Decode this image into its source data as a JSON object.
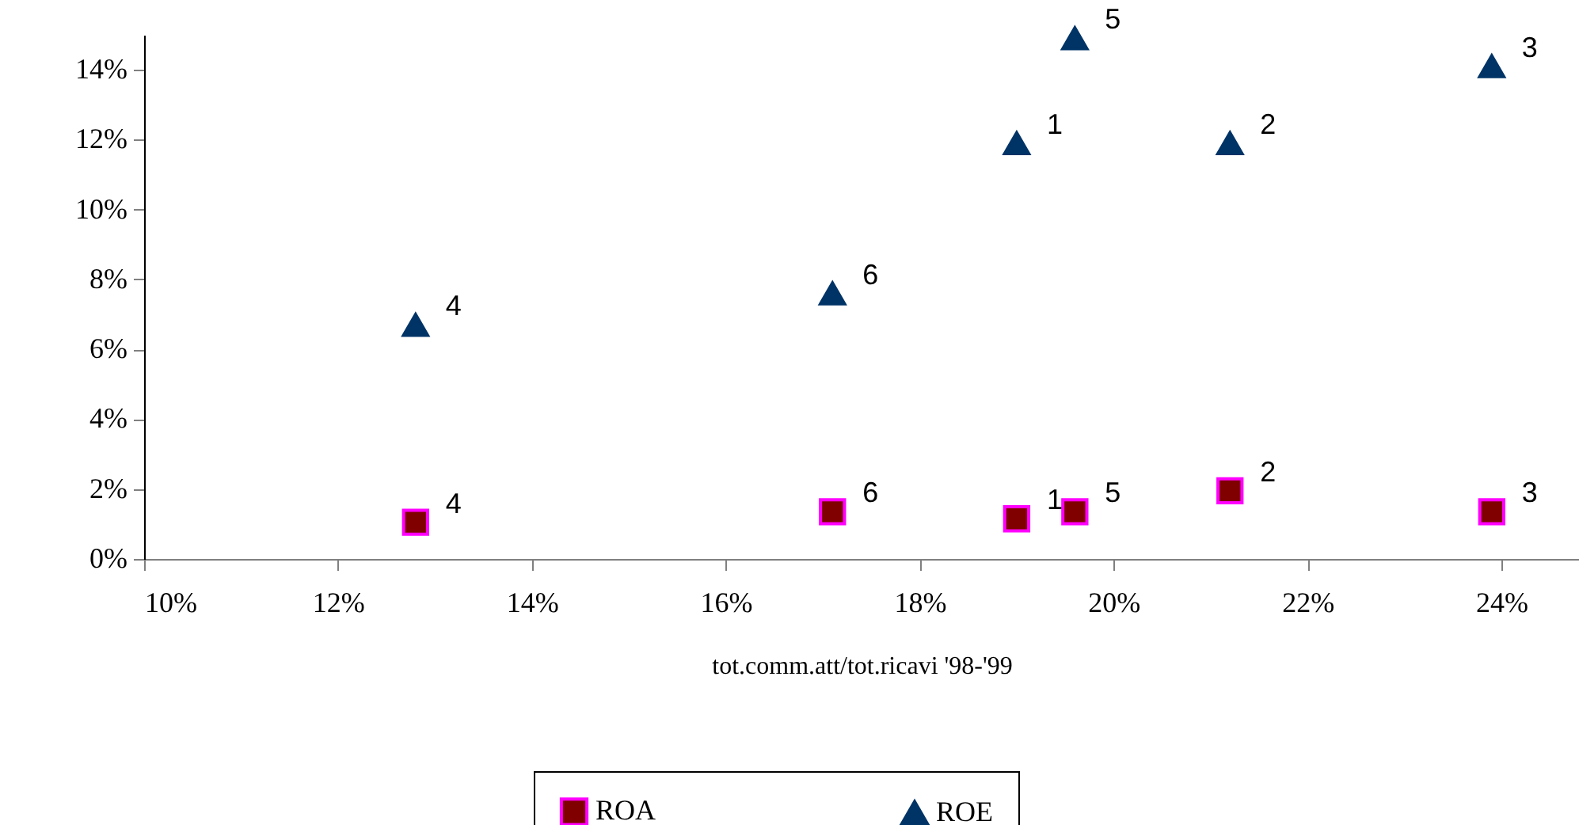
{
  "chart_data": {
    "type": "scatter",
    "xlabel": "tot.comm.att/tot.ricavi '98-'99",
    "xlim": [
      10,
      24.8
    ],
    "xticks": [
      {
        "value": 10,
        "label": "10%"
      },
      {
        "value": 12,
        "label": "12%"
      },
      {
        "value": 14,
        "label": "14%"
      },
      {
        "value": 16,
        "label": "16%"
      },
      {
        "value": 18,
        "label": "18%"
      },
      {
        "value": 20,
        "label": "20%"
      },
      {
        "value": 22,
        "label": "22%"
      },
      {
        "value": 24,
        "label": "24%"
      }
    ],
    "ylim": [
      0,
      15
    ],
    "yticks": [
      {
        "value": 0,
        "label": "0%"
      },
      {
        "value": 2,
        "label": "2%"
      },
      {
        "value": 4,
        "label": "4%"
      },
      {
        "value": 6,
        "label": "6%"
      },
      {
        "value": 8,
        "label": "8%"
      },
      {
        "value": 10,
        "label": "10%"
      },
      {
        "value": 12,
        "label": "12%"
      },
      {
        "value": 14,
        "label": "14%"
      }
    ],
    "grid": false,
    "legend": "bottom",
    "series": [
      {
        "name": "ROA",
        "color": "#800000",
        "marker": "square",
        "x": [
          19.0,
          21.2,
          23.9,
          12.8,
          19.6,
          17.1
        ],
        "values": [
          1.15,
          1.95,
          1.35,
          1.05,
          1.35,
          1.35
        ]
      },
      {
        "name": "ROE",
        "color": "#003366",
        "marker": "triangle",
        "x": [
          19.0,
          21.2,
          23.9,
          12.8,
          19.6,
          17.1
        ],
        "values": [
          11.9,
          11.9,
          14.1,
          6.7,
          14.9,
          7.6
        ]
      }
    ],
    "annotations": [
      {
        "text": "1",
        "x": 19.0,
        "y": 11.9
      },
      {
        "text": "2",
        "x": 21.2,
        "y": 11.9
      },
      {
        "text": "3",
        "x": 23.9,
        "y": 14.1
      },
      {
        "text": "4",
        "x": 12.8,
        "y": 6.7
      },
      {
        "text": "5",
        "x": 19.6,
        "y": 14.9
      },
      {
        "text": "6",
        "x": 17.1,
        "y": 7.6
      },
      {
        "text": "1",
        "x": 19.0,
        "y": 1.15
      },
      {
        "text": "2",
        "x": 21.2,
        "y": 1.95
      },
      {
        "text": "3",
        "x": 23.9,
        "y": 1.35
      },
      {
        "text": "4",
        "x": 12.8,
        "y": 1.05
      },
      {
        "text": "5",
        "x": 19.6,
        "y": 1.35
      },
      {
        "text": "6",
        "x": 17.1,
        "y": 1.35
      }
    ]
  }
}
